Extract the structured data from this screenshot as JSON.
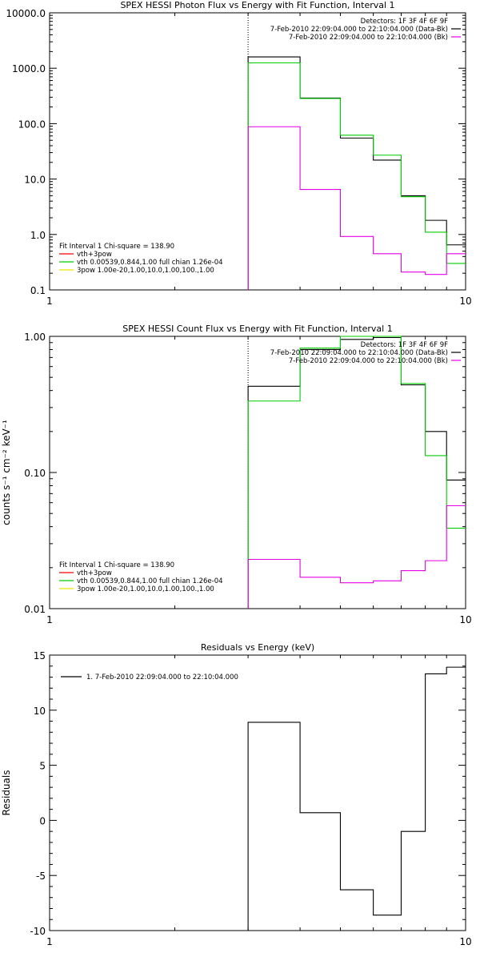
{
  "chart_data": [
    {
      "type": "line",
      "title": "SPEX HESSI Photon Flux vs Energy with Fit Function, Interval 1",
      "xlabel": "",
      "ylabel": "",
      "xscale": "log",
      "yscale": "log",
      "xlim": [
        1,
        10
      ],
      "ylim": [
        0.1,
        10000
      ],
      "xtick_values": [
        1,
        10
      ],
      "xtick_labels": [
        "1",
        "10"
      ],
      "ytick_values": [
        0.1,
        1,
        10,
        100,
        1000,
        10000
      ],
      "ytick_labels": [
        "0.1",
        "1.0",
        "10.0",
        "100.0",
        "1000.0",
        "10000.0"
      ],
      "vline_x": 3.0,
      "header_lines": [
        "Detectors: 1F 3F 4F 6F 9F",
        "7-Feb-2010 22:09:04.000 to 22:10:04.000 (Data-Bk)",
        "7-Feb-2010 22:09:04.000 to 22:10:04.000 (Bk)"
      ],
      "header_colors": [
        "#000000",
        "#000000",
        "#e600e6"
      ],
      "fit_legend": {
        "title": "Fit Interval 1    Chi-square = 138.90",
        "items": [
          {
            "label": "vth+3pow",
            "color": "#ff0000"
          },
          {
            "label": "vth 0.00539,0.844,1.00  full chian 1.26e-04",
            "color": "#00cc00"
          },
          {
            "label": "3pow 1.00e-20,1.00,10.0,1.00,100.,1.00",
            "color": "#e6e600"
          }
        ]
      },
      "bin_edges": [
        3.0,
        4.0,
        5.0,
        6.0,
        7.0,
        8.0,
        9.0,
        10.0
      ],
      "series": [
        {
          "color": "#000000",
          "values": [
            1600,
            290,
            55,
            22,
            5.0,
            1.8,
            0.65
          ]
        },
        {
          "color": "#00cc00",
          "values": [
            1250,
            285,
            62,
            27,
            4.8,
            1.1,
            0.3
          ]
        },
        {
          "color": "#e600e6",
          "values": [
            88,
            6.5,
            0.92,
            0.45,
            0.21,
            0.19,
            0.45
          ]
        }
      ]
    },
    {
      "type": "line",
      "title": "SPEX HESSI Count Flux vs Energy with Fit Function, Interval 1",
      "xlabel": "",
      "ylabel": "counts s⁻¹ cm⁻² keV⁻¹",
      "xscale": "log",
      "yscale": "log",
      "xlim": [
        1,
        10
      ],
      "ylim": [
        0.01,
        1.0
      ],
      "xtick_values": [
        1,
        10
      ],
      "xtick_labels": [
        "1",
        "10"
      ],
      "ytick_values": [
        0.01,
        0.1,
        1.0
      ],
      "ytick_labels": [
        "0.01",
        "0.10",
        "1.00"
      ],
      "vline_x": 3.0,
      "header_lines": [
        "Detectors: 1F 3F 4F 6F 9F",
        "7-Feb-2010 22:09:04.000 to 22:10:04.000 (Data-Bk)",
        "7-Feb-2010 22:09:04.000 to 22:10:04.000 (Bk)"
      ],
      "header_colors": [
        "#000000",
        "#000000",
        "#e600e6"
      ],
      "fit_legend": {
        "title": "Fit Interval 1    Chi-square = 138.90",
        "items": [
          {
            "label": "vth+3pow",
            "color": "#ff0000"
          },
          {
            "label": "vth 0.00539,0.844,1.00  full chian 1.26e-04",
            "color": "#00cc00"
          },
          {
            "label": "3pow 1.00e-20,1.00,10.0,1.00,100.,1.00",
            "color": "#e6e600"
          }
        ]
      },
      "bin_edges": [
        3.0,
        4.0,
        5.0,
        6.0,
        7.0,
        8.0,
        9.0,
        10.0
      ],
      "series": [
        {
          "color": "#000000",
          "values": [
            0.43,
            0.8,
            0.95,
            0.98,
            0.44,
            0.2,
            0.088
          ]
        },
        {
          "color": "#00cc00",
          "values": [
            0.335,
            0.82,
            1.0,
            1.0,
            0.45,
            0.133,
            0.039
          ]
        },
        {
          "color": "#e600e6",
          "values": [
            0.023,
            0.017,
            0.0155,
            0.016,
            0.019,
            0.0225,
            0.057
          ]
        }
      ]
    },
    {
      "type": "line",
      "title": "Residuals vs Energy (keV)",
      "xlabel": "",
      "ylabel": "Residuals",
      "xscale": "log",
      "yscale": "linear",
      "xlim": [
        1,
        10
      ],
      "ylim": [
        -10,
        15
      ],
      "xtick_values": [
        1,
        10
      ],
      "xtick_labels": [
        "1",
        "10"
      ],
      "ytick_values": [
        -10,
        -5,
        0,
        5,
        10,
        15
      ],
      "ytick_labels": [
        "-10",
        "-5",
        "0",
        "5",
        "10",
        "15"
      ],
      "legend": [
        {
          "label": "1.  7-Feb-2010 22:09:04.000 to 22:10:04.000",
          "color": "#000000"
        }
      ],
      "bin_edges": [
        3.0,
        4.0,
        5.0,
        6.0,
        7.0,
        8.0,
        9.0,
        10.0
      ],
      "series": [
        {
          "color": "#000000",
          "values": [
            8.9,
            0.7,
            -6.3,
            -8.6,
            -1.0,
            13.3,
            13.9
          ]
        }
      ]
    }
  ]
}
